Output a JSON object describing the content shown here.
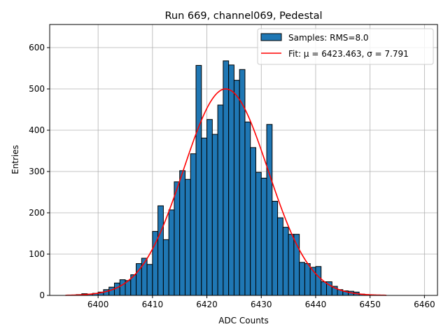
{
  "chart_data": {
    "type": "bar",
    "title": "Run 669, channel069, Pedestal",
    "xlabel": "ADC Counts",
    "ylabel": "Entries",
    "xlim": [
      6391.1,
      6462.4
    ],
    "ylim": [
      0,
      656
    ],
    "grid": true,
    "xticks": [
      6400,
      6410,
      6420,
      6430,
      6440,
      6450,
      6460
    ],
    "yticks": [
      0,
      100,
      200,
      300,
      400,
      500,
      600
    ],
    "bin_width": 1,
    "bin_edges_start": 6396,
    "values": [
      2,
      4,
      3,
      5,
      8,
      14,
      20,
      30,
      38,
      36,
      50,
      77,
      90,
      75,
      155,
      217,
      135,
      207,
      275,
      302,
      281,
      343,
      557,
      381,
      426,
      390,
      461,
      568,
      558,
      521,
      547,
      420,
      358,
      298,
      284,
      414,
      228,
      188,
      165,
      148,
      148,
      80,
      77,
      68,
      70,
      33,
      33,
      22,
      14,
      11,
      10,
      8,
      3,
      1,
      1
    ],
    "fit": {
      "mu": 6423.463,
      "sigma": 7.791,
      "amplitude": 500,
      "range": [
        6394,
        6453
      ]
    },
    "legend": {
      "placement": "top-right",
      "entries": [
        {
          "label": "Samples: RMS=8.0",
          "color": "#1f77b4"
        },
        {
          "label": "Fit: μ = 6423.463, σ = 7.791",
          "color": "#ff0000"
        }
      ]
    },
    "colors": {
      "bar": "#1f77b4",
      "edge": "#000000",
      "fit": "#ff0000",
      "grid": "#b0b0b0"
    }
  }
}
